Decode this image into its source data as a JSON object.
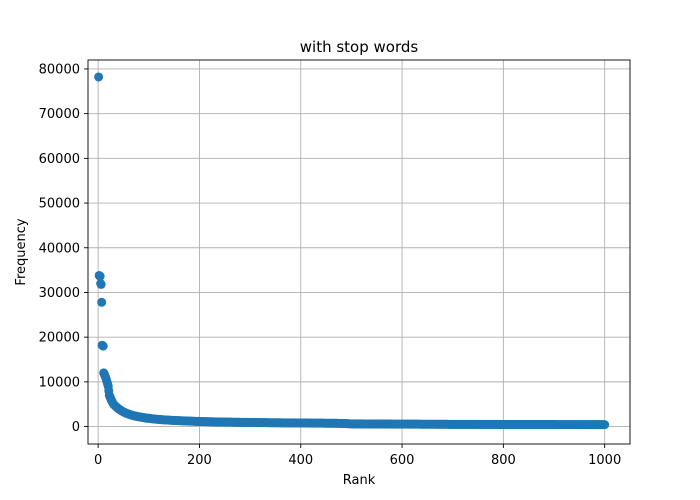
{
  "chart_data": {
    "type": "scatter",
    "title": "with stop words",
    "xlabel": "Rank",
    "ylabel": "Frequency",
    "xlim": [
      -20,
      1050
    ],
    "ylim": [
      -3900,
      82000
    ],
    "x_ticks": [
      0,
      200,
      400,
      600,
      800,
      1000
    ],
    "y_ticks": [
      0,
      10000,
      20000,
      30000,
      40000,
      50000,
      60000,
      70000,
      80000
    ],
    "x_tick_labels": [
      "0",
      "200",
      "400",
      "600",
      "800",
      "1000"
    ],
    "y_tick_labels": [
      "0",
      "10000",
      "20000",
      "30000",
      "40000",
      "50000",
      "60000",
      "70000",
      "80000"
    ],
    "grid": true,
    "marker_color": "#1f77b4",
    "series": [
      {
        "points": [
          [
            1,
            78200
          ],
          [
            2,
            33800
          ],
          [
            3,
            33700
          ],
          [
            4,
            33600
          ],
          [
            5,
            32000
          ],
          [
            6,
            31800
          ],
          [
            7,
            27800
          ],
          [
            8,
            18200
          ],
          [
            9,
            18100
          ],
          [
            10,
            18000
          ],
          [
            11,
            12000
          ],
          [
            12,
            11800
          ],
          [
            13,
            11500
          ],
          [
            14,
            11200
          ],
          [
            15,
            11000
          ],
          [
            16,
            10600
          ],
          [
            17,
            10200
          ],
          [
            18,
            9800
          ],
          [
            19,
            9400
          ],
          [
            20,
            9000
          ],
          [
            21,
            8000
          ],
          [
            22,
            7000
          ],
          [
            23,
            6800
          ],
          [
            24,
            6500
          ],
          [
            25,
            6200
          ],
          [
            26,
            5900
          ],
          [
            27,
            5700
          ],
          [
            28,
            5500
          ],
          [
            29,
            5300
          ],
          [
            30,
            5100
          ],
          [
            32,
            4800
          ],
          [
            34,
            4600
          ],
          [
            36,
            4400
          ],
          [
            38,
            4200
          ],
          [
            40,
            4000
          ],
          [
            42,
            3850
          ],
          [
            44,
            3700
          ],
          [
            46,
            3550
          ],
          [
            48,
            3400
          ],
          [
            50,
            3300
          ],
          [
            55,
            3000
          ],
          [
            60,
            2800
          ],
          [
            65,
            2600
          ],
          [
            70,
            2450
          ],
          [
            75,
            2300
          ],
          [
            80,
            2200
          ],
          [
            85,
            2100
          ],
          [
            90,
            2000
          ],
          [
            95,
            1900
          ],
          [
            100,
            1850
          ],
          [
            110,
            1700
          ],
          [
            120,
            1600
          ],
          [
            130,
            1500
          ],
          [
            140,
            1430
          ],
          [
            150,
            1370
          ],
          [
            160,
            1320
          ],
          [
            170,
            1270
          ],
          [
            180,
            1220
          ],
          [
            190,
            1180
          ],
          [
            200,
            1140
          ],
          [
            220,
            1080
          ],
          [
            240,
            1030
          ],
          [
            260,
            990
          ],
          [
            280,
            950
          ],
          [
            300,
            920
          ],
          [
            320,
            890
          ],
          [
            340,
            860
          ],
          [
            360,
            840
          ],
          [
            380,
            820
          ],
          [
            400,
            800
          ],
          [
            420,
            780
          ],
          [
            440,
            760
          ],
          [
            460,
            740
          ],
          [
            480,
            720
          ],
          [
            500,
            600
          ],
          [
            520,
            590
          ],
          [
            540,
            580
          ],
          [
            560,
            570
          ],
          [
            580,
            560
          ],
          [
            600,
            550
          ],
          [
            620,
            540
          ],
          [
            640,
            530
          ],
          [
            660,
            520
          ],
          [
            680,
            510
          ],
          [
            700,
            500
          ],
          [
            720,
            495
          ],
          [
            740,
            490
          ],
          [
            760,
            485
          ],
          [
            780,
            480
          ],
          [
            800,
            475
          ],
          [
            820,
            470
          ],
          [
            840,
            465
          ],
          [
            860,
            460
          ],
          [
            880,
            455
          ],
          [
            900,
            450
          ],
          [
            920,
            445
          ],
          [
            940,
            440
          ],
          [
            960,
            435
          ],
          [
            980,
            430
          ],
          [
            1000,
            425
          ]
        ]
      }
    ]
  }
}
